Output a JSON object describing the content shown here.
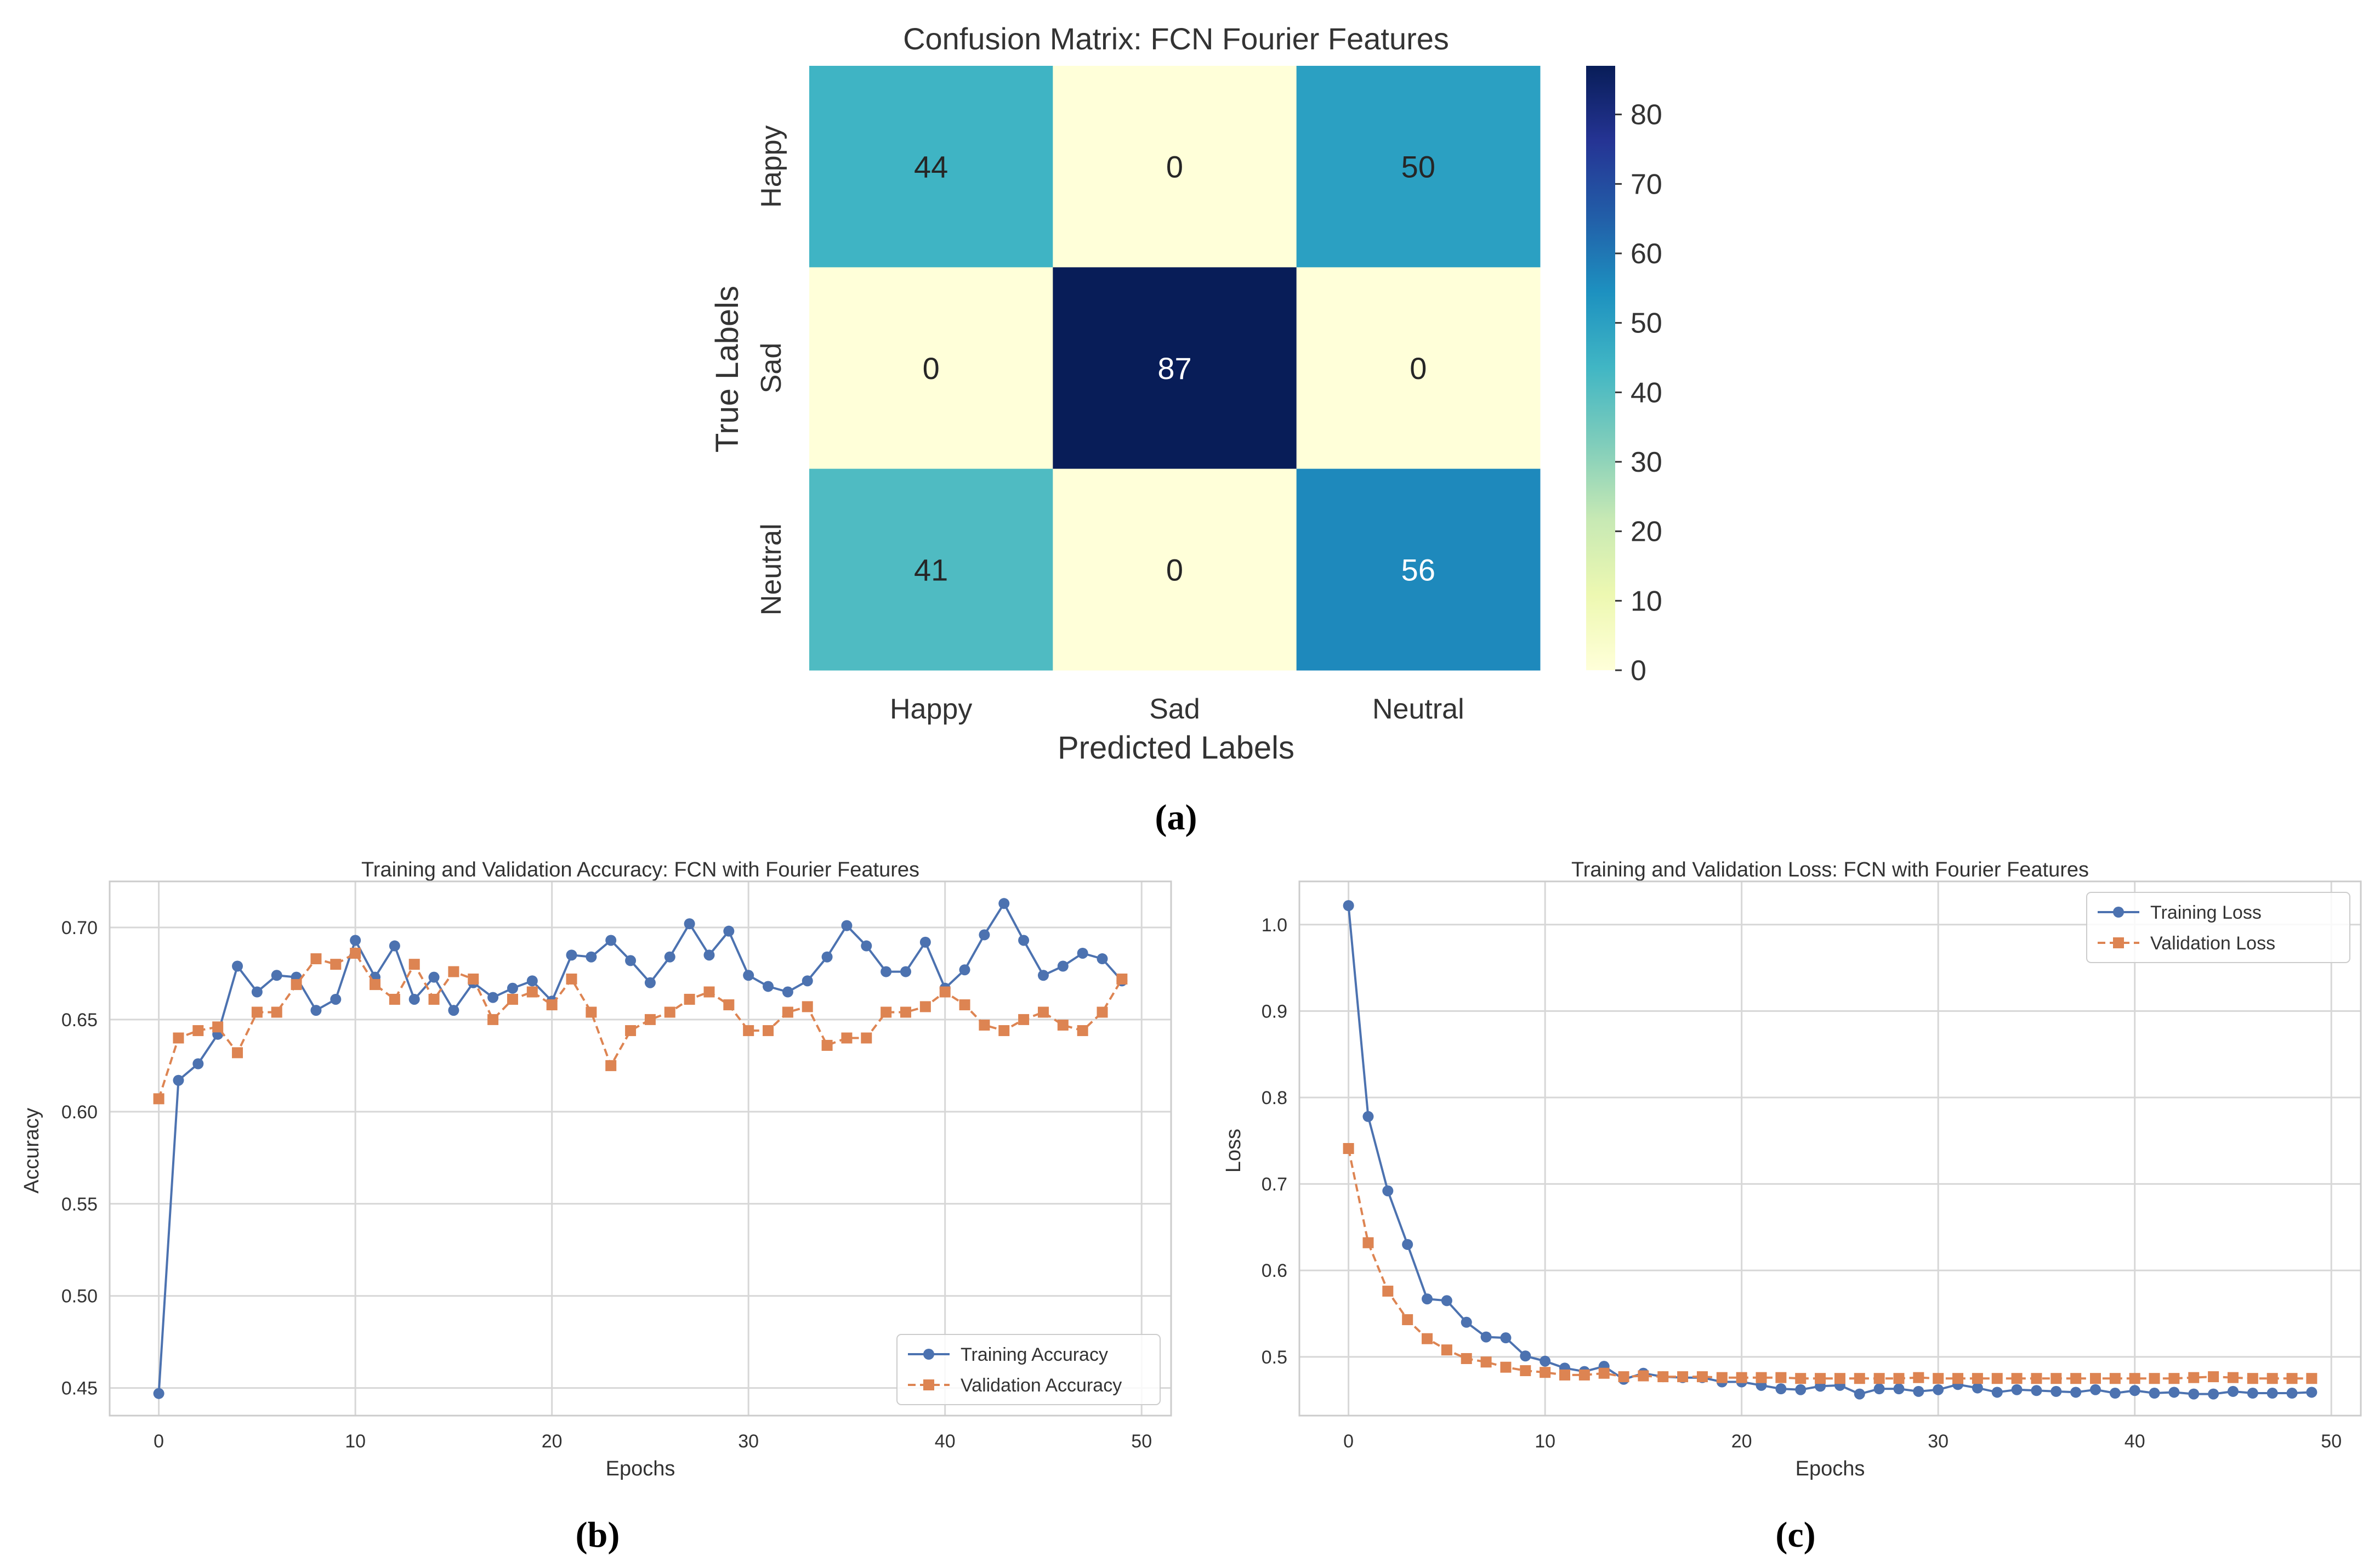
{
  "captions": {
    "a": "(a)",
    "b": "(b)",
    "c": "(c)"
  },
  "chart_data": [
    {
      "type": "heatmap",
      "title": "Confusion Matrix: FCN Fourier Features",
      "xlabel": "Predicted Labels",
      "ylabel": "True Labels",
      "x_categories": [
        "Happy",
        "Sad",
        "Neutral"
      ],
      "y_categories": [
        "Happy",
        "Sad",
        "Neutral"
      ],
      "values": [
        [
          44,
          0,
          50
        ],
        [
          0,
          87,
          0
        ],
        [
          41,
          0,
          56
        ]
      ],
      "colormap": "YlGnBu",
      "colorbar": {
        "min": 0,
        "max": 87,
        "ticks": [
          0,
          10,
          20,
          30,
          40,
          50,
          60,
          70,
          80
        ]
      }
    },
    {
      "type": "line",
      "title": "Training and Validation Accuracy: FCN with Fourier Features",
      "xlabel": "Epochs",
      "ylabel": "Accuracy",
      "xlim": [
        -2.5,
        51.5
      ],
      "ylim": [
        0.435,
        0.725
      ],
      "xticks": [
        0,
        10,
        20,
        30,
        40,
        50
      ],
      "yticks": [
        0.45,
        0.5,
        0.55,
        0.6,
        0.65,
        0.7
      ],
      "ytick_labels": [
        "0.45",
        "0.50",
        "0.55",
        "0.60",
        "0.65",
        "0.70"
      ],
      "grid": true,
      "legend": "lower-right",
      "x": [
        0,
        1,
        2,
        3,
        4,
        5,
        6,
        7,
        8,
        9,
        10,
        11,
        12,
        13,
        14,
        15,
        16,
        17,
        18,
        19,
        20,
        21,
        22,
        23,
        24,
        25,
        26,
        27,
        28,
        29,
        30,
        31,
        32,
        33,
        34,
        35,
        36,
        37,
        38,
        39,
        40,
        41,
        42,
        43,
        44,
        45,
        46,
        47,
        48,
        49
      ],
      "series": [
        {
          "name": "Training Accuracy",
          "color": "#4c72b0",
          "marker": "circle",
          "dash": "solid",
          "values": [
            0.447,
            0.617,
            0.626,
            0.642,
            0.679,
            0.665,
            0.674,
            0.673,
            0.655,
            0.661,
            0.693,
            0.673,
            0.69,
            0.661,
            0.673,
            0.655,
            0.67,
            0.662,
            0.667,
            0.671,
            0.66,
            0.685,
            0.684,
            0.693,
            0.682,
            0.67,
            0.684,
            0.702,
            0.685,
            0.698,
            0.674,
            0.668,
            0.665,
            0.671,
            0.684,
            0.701,
            0.69,
            0.676,
            0.676,
            0.692,
            0.667,
            0.677,
            0.696,
            0.713,
            0.693,
            0.674,
            0.679,
            0.686,
            0.683,
            0.671
          ]
        },
        {
          "name": "Validation Accuracy",
          "color": "#dd8452",
          "marker": "square",
          "dash": "dashed",
          "values": [
            0.607,
            0.64,
            0.644,
            0.646,
            0.632,
            0.654,
            0.654,
            0.669,
            0.683,
            0.68,
            0.686,
            0.669,
            0.661,
            0.68,
            0.661,
            0.676,
            0.672,
            0.65,
            0.661,
            0.665,
            0.658,
            0.672,
            0.654,
            0.625,
            0.644,
            0.65,
            0.654,
            0.661,
            0.665,
            0.658,
            0.644,
            0.644,
            0.654,
            0.657,
            0.636,
            0.64,
            0.64,
            0.654,
            0.654,
            0.657,
            0.665,
            0.658,
            0.647,
            0.644,
            0.65,
            0.654,
            0.647,
            0.644,
            0.654,
            0.672
          ]
        }
      ]
    },
    {
      "type": "line",
      "title": "Training and Validation Loss: FCN with Fourier Features",
      "xlabel": "Epochs",
      "ylabel": "Loss",
      "xlim": [
        -2.5,
        51.5
      ],
      "ylim": [
        0.432,
        1.05
      ],
      "xticks": [
        0,
        10,
        20,
        30,
        40,
        50
      ],
      "yticks": [
        0.5,
        0.6,
        0.7,
        0.8,
        0.9,
        1.0
      ],
      "ytick_labels": [
        "0.5",
        "0.6",
        "0.7",
        "0.8",
        "0.9",
        "1.0"
      ],
      "grid": true,
      "legend": "top-right",
      "x": [
        0,
        1,
        2,
        3,
        4,
        5,
        6,
        7,
        8,
        9,
        10,
        11,
        12,
        13,
        14,
        15,
        16,
        17,
        18,
        19,
        20,
        21,
        22,
        23,
        24,
        25,
        26,
        27,
        28,
        29,
        30,
        31,
        32,
        33,
        34,
        35,
        36,
        37,
        38,
        39,
        40,
        41,
        42,
        43,
        44,
        45,
        46,
        47,
        48,
        49
      ],
      "series": [
        {
          "name": "Training Loss",
          "color": "#4c72b0",
          "marker": "circle",
          "dash": "solid",
          "values": [
            1.022,
            0.778,
            0.692,
            0.63,
            0.567,
            0.565,
            0.54,
            0.523,
            0.522,
            0.501,
            0.495,
            0.487,
            0.483,
            0.489,
            0.474,
            0.481,
            0.477,
            0.476,
            0.476,
            0.471,
            0.471,
            0.467,
            0.463,
            0.462,
            0.466,
            0.467,
            0.457,
            0.463,
            0.463,
            0.46,
            0.462,
            0.468,
            0.464,
            0.459,
            0.462,
            0.461,
            0.46,
            0.459,
            0.462,
            0.458,
            0.461,
            0.458,
            0.459,
            0.457,
            0.457,
            0.46,
            0.458,
            0.458,
            0.458,
            0.459
          ]
        },
        {
          "name": "Validation Loss",
          "color": "#dd8452",
          "marker": "square",
          "dash": "dashed",
          "values": [
            0.741,
            0.632,
            0.576,
            0.543,
            0.521,
            0.508,
            0.498,
            0.494,
            0.488,
            0.484,
            0.482,
            0.479,
            0.479,
            0.481,
            0.477,
            0.478,
            0.477,
            0.477,
            0.477,
            0.476,
            0.476,
            0.476,
            0.476,
            0.475,
            0.475,
            0.475,
            0.475,
            0.475,
            0.475,
            0.476,
            0.475,
            0.475,
            0.475,
            0.475,
            0.475,
            0.475,
            0.475,
            0.475,
            0.475,
            0.475,
            0.475,
            0.475,
            0.475,
            0.476,
            0.477,
            0.476,
            0.475,
            0.475,
            0.475,
            0.475
          ]
        }
      ]
    }
  ]
}
